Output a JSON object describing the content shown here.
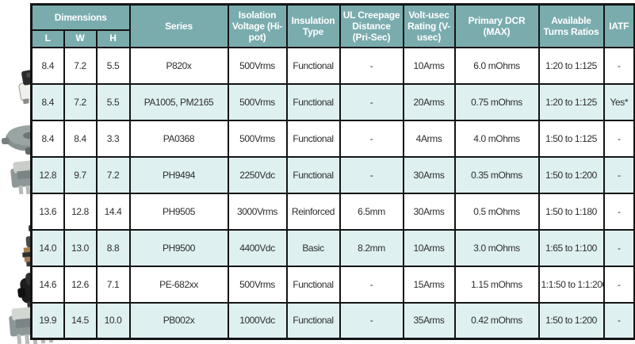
{
  "table": {
    "header": {
      "dimensions_group": "Dimensions",
      "sub_columns": [
        "L",
        "W",
        "H"
      ],
      "columns": [
        "Series",
        "Isolation Voltage (Hi-pot)",
        "Insulation Type",
        "UL Creepage Distance (Pri-Sec)",
        "Volt-usec Rating (V-usec)",
        "Primary DCR (MAX)",
        "Available Turns Ratios",
        "IATF"
      ]
    },
    "rows": [
      {
        "cells": [
          "8.4",
          "7.2",
          "5.5",
          "P820x",
          "500Vrms",
          "Functional",
          "-",
          "10Arms",
          "6.0 mOhms",
          "1:20 to 1:125",
          "-"
        ]
      },
      {
        "cells": [
          "8.4",
          "7.2",
          "5.5",
          "PA1005, PM2165",
          "500Vrms",
          "Functional",
          "-",
          "20Arms",
          "0.75 mOhms",
          "1:20 to 1:125",
          "Yes*"
        ]
      },
      {
        "cells": [
          "8.4",
          "8.4",
          "3.3",
          "PA0368",
          "500Vrms",
          "Functional",
          "-",
          "4Arms",
          "4.0 mOhms",
          "1:50 to 1:125",
          "-"
        ]
      },
      {
        "cells": [
          "12.8",
          "9.7",
          "7.2",
          "PH9494",
          "2250Vdc",
          "Functional",
          "-",
          "30Arms",
          "0.35 mOhms",
          "1:50 to 1:200",
          "-"
        ]
      },
      {
        "cells": [
          "13.6",
          "12.8",
          "14.4",
          "PH9505",
          "3000Vrms",
          "Reinforced",
          "6.5mm",
          "30Arms",
          "0.5 mOhms",
          "1:50 to 1:180",
          "-"
        ]
      },
      {
        "cells": [
          "14.0",
          "13.0",
          "8.8",
          "PH9500",
          "4400Vdc",
          "Basic",
          "8.2mm",
          "10Arms",
          "3.0 mOhms",
          "1:65 to 1:100",
          "-"
        ]
      },
      {
        "cells": [
          "14.6",
          "12.6",
          "7.1",
          "PE-682xx",
          "500Vrms",
          "Functional",
          "-",
          "15Arms",
          "1.15 mOhms",
          "1:1:50 to 1:1:200",
          "-"
        ]
      },
      {
        "cells": [
          "19.9",
          "14.5",
          "10.0",
          "PB002x",
          "1000Vdc",
          "Functional",
          "-",
          "35Arms",
          "0.42 mOhms",
          "1:50 to 1:200",
          "-"
        ]
      }
    ]
  },
  "product_images": [
    {
      "name": "smd-transformer-photo"
    },
    {
      "name": "toroid-inductor-photo"
    },
    {
      "name": "ecore-transformer-photo"
    },
    {
      "name": "wound-cube-transformer-photo"
    },
    {
      "name": "planar-transformer-photo"
    },
    {
      "name": "black-shielded-transformer-photo"
    },
    {
      "name": "large-ecore-transformer-photo"
    }
  ],
  "colors": {
    "header_bg": "#7aacae",
    "row_alt_bg": "#dff0f1",
    "border_color": "#141414",
    "header_text": "#ffffff",
    "body_text": "#2e2e2e"
  }
}
